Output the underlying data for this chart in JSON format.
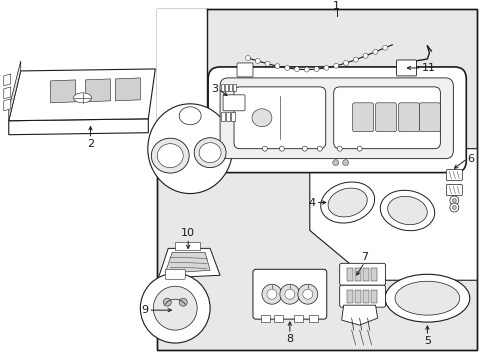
{
  "bg_color": "#ffffff",
  "panel_bg": "#e8e8e8",
  "line_color": "#1a1a1a",
  "figsize": [
    4.89,
    3.6
  ],
  "dpi": 100
}
